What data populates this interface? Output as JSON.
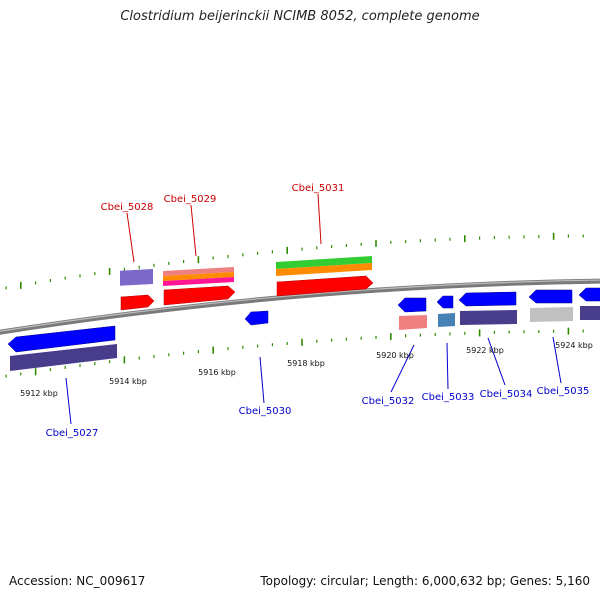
{
  "title": "Clostridium beijerinckii NCIMB 8052, complete genome",
  "footer": {
    "accession": "Accession: NC_009617",
    "topology": "Topology: circular; Length: 6,000,632 bp; Genes: 5,160"
  },
  "colors": {
    "backbone": "#7a7a7a",
    "tick": "#2e8b00",
    "forward_label": "#cc0000",
    "reverse_label": "#0000cc",
    "scale_text": "#111111"
  },
  "scale_labels": [
    "5912 kbp",
    "5914 kbp",
    "5916 kbp",
    "5918 kbp",
    "5920 kbp",
    "5922 kbp",
    "5924 kbp"
  ],
  "genes": [
    {
      "id": "Cbei_5027",
      "strand": "reverse"
    },
    {
      "id": "Cbei_5028",
      "strand": "forward"
    },
    {
      "id": "Cbei_5029",
      "strand": "forward"
    },
    {
      "id": "Cbei_5030",
      "strand": "reverse"
    },
    {
      "id": "Cbei_5031",
      "strand": "forward"
    },
    {
      "id": "Cbei_5032",
      "strand": "reverse"
    },
    {
      "id": "Cbei_5033",
      "strand": "reverse"
    },
    {
      "id": "Cbei_5034",
      "strand": "reverse"
    },
    {
      "id": "Cbei_5035",
      "strand": "reverse"
    }
  ]
}
